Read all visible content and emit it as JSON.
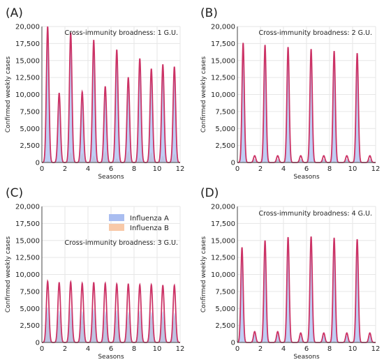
{
  "figure": {
    "legend": {
      "influenza_a": "Influenza A",
      "influenza_b": "Influenza B",
      "placement": "top-center (panel C)"
    },
    "colors": {
      "influenza_a_fill": "#a9bdf0",
      "influenza_b_fill": "#f8c9a8",
      "total_line": "#cc3366",
      "grid": "#e6e6e6"
    }
  },
  "chart_data": [
    {
      "panel": "(A)",
      "type": "area",
      "annotation": "Cross-immunity broadness: 1 G.U.",
      "xlabel": "Seasons",
      "ylabel": "Confirmed weekly cases",
      "xlim": [
        0,
        12
      ],
      "ylim": [
        0,
        20000
      ],
      "xticks": [
        0,
        2,
        4,
        6,
        8,
        10,
        12
      ],
      "yticks": [
        "0",
        "2,500",
        "5,000",
        "7,500",
        "10,000",
        "12,500",
        "15,000",
        "17,500",
        "20,000"
      ],
      "grid": true,
      "peak_width": 0.11,
      "series": [
        {
          "name": "Influenza A",
          "peaks": [
            {
              "x": 0.5,
              "y": 19800
            },
            {
              "x": 1.5,
              "y": 9900
            },
            {
              "x": 2.5,
              "y": 17600
            },
            {
              "x": 3.5,
              "y": 9000
            },
            {
              "x": 4.5,
              "y": 17000
            },
            {
              "x": 5.5,
              "y": 9500
            },
            {
              "x": 6.5,
              "y": 16000
            },
            {
              "x": 7.5,
              "y": 10800
            },
            {
              "x": 8.5,
              "y": 14600
            },
            {
              "x": 9.5,
              "y": 12300
            },
            {
              "x": 10.5,
              "y": 13400
            },
            {
              "x": 11.5,
              "y": 12800
            }
          ]
        },
        {
          "name": "Influenza B",
          "peaks": [
            {
              "x": 0.5,
              "y": 200
            },
            {
              "x": 1.5,
              "y": 300
            },
            {
              "x": 2.5,
              "y": 1500
            },
            {
              "x": 3.5,
              "y": 1400
            },
            {
              "x": 4.5,
              "y": 1000
            },
            {
              "x": 5.5,
              "y": 1700
            },
            {
              "x": 6.5,
              "y": 600
            },
            {
              "x": 7.5,
              "y": 1700
            },
            {
              "x": 8.5,
              "y": 700
            },
            {
              "x": 9.5,
              "y": 1500
            },
            {
              "x": 10.5,
              "y": 1000
            },
            {
              "x": 11.5,
              "y": 1300
            }
          ]
        }
      ]
    },
    {
      "panel": "(B)",
      "type": "area",
      "annotation": "Cross-immunity broadness: 2 G.U.",
      "xlabel": "Seasons",
      "ylabel": "Confirmed weekly cases",
      "xlim": [
        0,
        12
      ],
      "ylim": [
        0,
        20000
      ],
      "xticks": [
        0,
        2,
        4,
        6,
        8,
        10,
        12
      ],
      "yticks": [
        "0",
        "2,500",
        "5,000",
        "7,500",
        "10,000",
        "12,500",
        "15,000",
        "17,500",
        "20,000"
      ],
      "grid": true,
      "peak_width": 0.1,
      "series": [
        {
          "name": "Influenza A",
          "peaks": [
            {
              "x": 0.5,
              "y": 17400
            },
            {
              "x": 1.5,
              "y": 500
            },
            {
              "x": 2.4,
              "y": 17100
            },
            {
              "x": 3.5,
              "y": 500
            },
            {
              "x": 4.4,
              "y": 16800
            },
            {
              "x": 5.5,
              "y": 500
            },
            {
              "x": 6.4,
              "y": 16500
            },
            {
              "x": 7.5,
              "y": 500
            },
            {
              "x": 8.4,
              "y": 16200
            },
            {
              "x": 9.5,
              "y": 500
            },
            {
              "x": 10.4,
              "y": 15900
            },
            {
              "x": 11.5,
              "y": 500
            }
          ]
        },
        {
          "name": "Influenza B",
          "peaks": [
            {
              "x": 0.5,
              "y": 200
            },
            {
              "x": 1.5,
              "y": 500
            },
            {
              "x": 2.4,
              "y": 200
            },
            {
              "x": 3.5,
              "y": 500
            },
            {
              "x": 4.4,
              "y": 200
            },
            {
              "x": 5.5,
              "y": 500
            },
            {
              "x": 6.4,
              "y": 200
            },
            {
              "x": 7.5,
              "y": 500
            },
            {
              "x": 8.4,
              "y": 200
            },
            {
              "x": 9.5,
              "y": 500
            },
            {
              "x": 10.4,
              "y": 200
            },
            {
              "x": 11.5,
              "y": 500
            }
          ]
        }
      ]
    },
    {
      "panel": "(C)",
      "type": "area",
      "annotation": "Cross-immunity broadness: 3 G.U.",
      "xlabel": "Seasons",
      "ylabel": "Confirmed weekly cases",
      "xlim": [
        0,
        12
      ],
      "ylim": [
        0,
        20000
      ],
      "xticks": [
        0,
        2,
        4,
        6,
        8,
        10,
        12
      ],
      "yticks": [
        "0",
        "2,500",
        "5,000",
        "7,500",
        "10,000",
        "12,500",
        "15,000",
        "17,500",
        "20,000"
      ],
      "grid": true,
      "peak_width": 0.11,
      "series": [
        {
          "name": "Influenza A",
          "peaks": [
            {
              "x": 0.5,
              "y": 5200
            },
            {
              "x": 1.5,
              "y": 4700
            },
            {
              "x": 2.5,
              "y": 5100
            },
            {
              "x": 3.5,
              "y": 4600
            },
            {
              "x": 4.5,
              "y": 5000
            },
            {
              "x": 5.5,
              "y": 4600
            },
            {
              "x": 6.5,
              "y": 4800
            },
            {
              "x": 7.5,
              "y": 4500
            },
            {
              "x": 8.5,
              "y": 4700
            },
            {
              "x": 9.5,
              "y": 4500
            },
            {
              "x": 10.5,
              "y": 4600
            },
            {
              "x": 11.5,
              "y": 4400
            }
          ]
        },
        {
          "name": "Influenza B",
          "peaks": [
            {
              "x": 0.5,
              "y": 3800
            },
            {
              "x": 1.5,
              "y": 4100
            },
            {
              "x": 2.5,
              "y": 3800
            },
            {
              "x": 3.5,
              "y": 4100
            },
            {
              "x": 4.5,
              "y": 3800
            },
            {
              "x": 5.5,
              "y": 4100
            },
            {
              "x": 6.5,
              "y": 3800
            },
            {
              "x": 7.5,
              "y": 4100
            },
            {
              "x": 8.5,
              "y": 3800
            },
            {
              "x": 9.5,
              "y": 4000
            },
            {
              "x": 10.5,
              "y": 3800
            },
            {
              "x": 11.5,
              "y": 4000
            }
          ]
        }
      ]
    },
    {
      "panel": "(D)",
      "type": "area",
      "annotation": "Cross-immunity broadness: 4 G.U.",
      "xlabel": "Seasons",
      "ylabel": "Confirmed weekly cases",
      "xlim": [
        0,
        12
      ],
      "ylim": [
        0,
        20000
      ],
      "xticks": [
        0,
        2,
        4,
        6,
        8,
        10,
        12
      ],
      "yticks": [
        "0",
        "2,500",
        "5,000",
        "7,500",
        "10,000",
        "12,500",
        "15,000",
        "17,500",
        "20,000"
      ],
      "grid": true,
      "peak_width": 0.1,
      "series": [
        {
          "name": "Influenza A",
          "peaks": [
            {
              "x": 0.4,
              "y": 13800
            },
            {
              "x": 1.5,
              "y": 1200
            },
            {
              "x": 2.4,
              "y": 14800
            },
            {
              "x": 3.5,
              "y": 1200
            },
            {
              "x": 4.4,
              "y": 15300
            },
            {
              "x": 5.5,
              "y": 1000
            },
            {
              "x": 6.4,
              "y": 15400
            },
            {
              "x": 7.5,
              "y": 1000
            },
            {
              "x": 8.4,
              "y": 15200
            },
            {
              "x": 9.5,
              "y": 1000
            },
            {
              "x": 10.4,
              "y": 15000
            },
            {
              "x": 11.5,
              "y": 1000
            }
          ]
        },
        {
          "name": "Influenza B",
          "peaks": [
            {
              "x": 0.4,
              "y": 200
            },
            {
              "x": 1.5,
              "y": 400
            },
            {
              "x": 2.4,
              "y": 200
            },
            {
              "x": 3.5,
              "y": 400
            },
            {
              "x": 4.4,
              "y": 200
            },
            {
              "x": 5.5,
              "y": 400
            },
            {
              "x": 6.4,
              "y": 200
            },
            {
              "x": 7.5,
              "y": 400
            },
            {
              "x": 8.4,
              "y": 200
            },
            {
              "x": 9.5,
              "y": 400
            },
            {
              "x": 10.4,
              "y": 200
            },
            {
              "x": 11.5,
              "y": 400
            }
          ]
        }
      ]
    }
  ]
}
